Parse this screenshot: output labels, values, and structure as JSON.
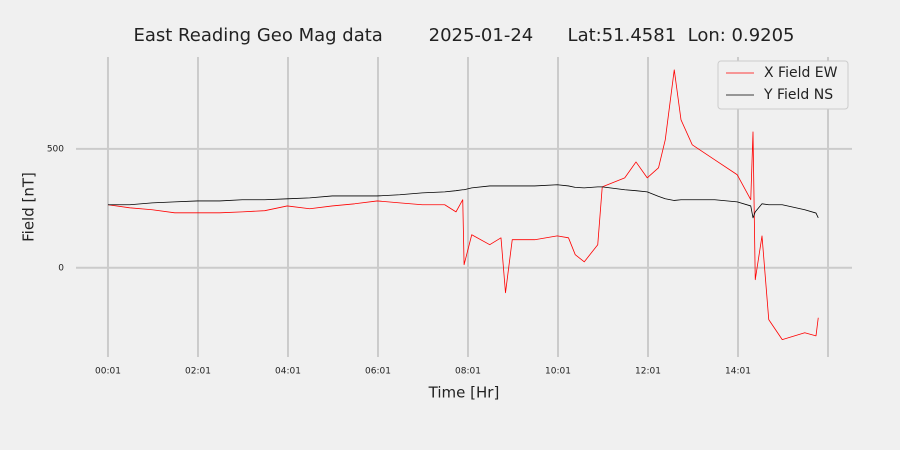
{
  "chart_data": {
    "type": "line",
    "title": "East Reading Geo Mag data        2025-01-24      Lat:51.4581  Lon: 0.9205",
    "x_label": "Time  [Hr]",
    "y_label": "Field  [nT]",
    "x": [
      0.0167,
      0.5,
      1,
      1.5,
      2,
      2.5,
      3,
      3.5,
      4,
      4.5,
      5,
      5.5,
      6,
      6.5,
      7,
      7.5,
      7.75,
      7.9,
      7.93,
      8.1,
      8.5,
      8.75,
      8.85,
      9,
      9.5,
      10,
      10.25,
      10.4,
      10.6,
      10.9,
      11,
      11.5,
      11.75,
      12,
      12.25,
      12.4,
      12.6,
      12.75,
      13,
      13.5,
      14,
      14.3,
      14.35,
      14.4,
      14.55,
      14.7,
      15,
      15.5,
      15.75,
      15.8
    ],
    "series": [
      {
        "name": "X Field EW",
        "color": "#ff0000",
        "values": [
          265,
          252,
          244,
          231,
          231,
          231,
          235,
          240,
          260,
          248,
          260,
          269,
          281,
          273,
          265,
          265,
          235,
          286,
          13,
          139,
          97,
          126,
          -105,
          118,
          118,
          134,
          126,
          55,
          25,
          97,
          340,
          378,
          445,
          378,
          420,
          538,
          832,
          622,
          517,
          454,
          391,
          286,
          571,
          -50,
          134,
          -218,
          -302,
          -273,
          -286,
          -210
        ]
      },
      {
        "name": "Y Field NS",
        "color": "#000000",
        "values": [
          265,
          265,
          273,
          277,
          281,
          281,
          286,
          286,
          290,
          294,
          302,
          302,
          302,
          307,
          315,
          319,
          324,
          328,
          328,
          336,
          344,
          344,
          344,
          344,
          344,
          349,
          344,
          338,
          336,
          340,
          340,
          328,
          324,
          319,
          300,
          290,
          283,
          286,
          286,
          286,
          277,
          260,
          210,
          235,
          269,
          265,
          265,
          244,
          230,
          210
        ]
      }
    ],
    "xlim": [
      -0.694,
      16.55
    ],
    "xticks": [
      {
        "value": 0.0167,
        "label": "00:01"
      },
      {
        "value": 2.0167,
        "label": "02:01"
      },
      {
        "value": 4.0167,
        "label": "04:01"
      },
      {
        "value": 6.0167,
        "label": "06:01"
      },
      {
        "value": 8.0167,
        "label": "08:01"
      },
      {
        "value": 10.0167,
        "label": "10:01"
      },
      {
        "value": 12.0167,
        "label": "12:01"
      },
      {
        "value": 14.0167,
        "label": "14:01"
      },
      {
        "value": 16.0167,
        "label": null
      }
    ],
    "ylim": [
      -375,
      886
    ],
    "yticks": [
      0,
      500
    ],
    "grid": true,
    "legend": "upper right"
  }
}
